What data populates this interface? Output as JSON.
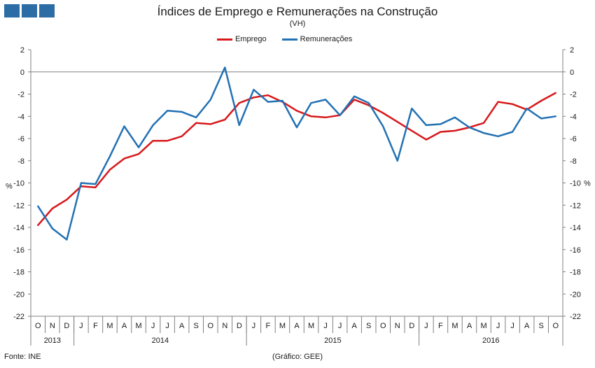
{
  "header": {
    "title": "Índices de Emprego e Remunerações na Construção",
    "subtitle": "(VH)"
  },
  "footer": {
    "source": "Fonte: INE",
    "credit": "(Gráfico: GEE)"
  },
  "colors": {
    "emprego": "#d7191c",
    "remuneracoes": "#2271b3",
    "logo": "#2d6da6",
    "axis": "#808080"
  },
  "chart_data": {
    "type": "line",
    "title": "Índices de Emprego e Remunerações na Construção",
    "subtitle": "(VH)",
    "ylabel_left": "%",
    "ylabel_right": "%",
    "ylim": [
      -22,
      2
    ],
    "yticks": [
      2,
      0,
      -2,
      -4,
      -6,
      -8,
      -10,
      -12,
      -14,
      -16,
      -18,
      -20,
      -22
    ],
    "grid": false,
    "legend_position": "top-center",
    "month_labels": [
      "O",
      "N",
      "D",
      "J",
      "F",
      "M",
      "A",
      "M",
      "J",
      "J",
      "A",
      "S",
      "O",
      "N",
      "D",
      "J",
      "F",
      "M",
      "A",
      "M",
      "J",
      "J",
      "A",
      "S",
      "O",
      "N",
      "D",
      "J",
      "F",
      "M",
      "A",
      "M",
      "J",
      "J",
      "A",
      "S",
      "O"
    ],
    "year_groups": [
      {
        "label": "2013",
        "count": 3
      },
      {
        "label": "2014",
        "count": 12
      },
      {
        "label": "2015",
        "count": 12
      },
      {
        "label": "2016",
        "count": 10
      }
    ],
    "series": [
      {
        "name": "Emprego",
        "color": "#d7191c",
        "values": [
          -13.8,
          -12.3,
          -11.5,
          -10.3,
          -10.4,
          -8.8,
          -7.8,
          -7.4,
          -6.2,
          -6.2,
          -5.8,
          -4.6,
          -4.7,
          -4.3,
          -2.8,
          -2.3,
          -2.1,
          -2.7,
          -3.5,
          -4.0,
          -4.1,
          -3.9,
          -2.5,
          -3.0,
          -3.7,
          -4.5,
          -5.3,
          -6.1,
          -5.4,
          -5.3,
          -5.0,
          -4.6,
          -2.7,
          -2.9,
          -3.4,
          -2.6,
          -1.9
        ]
      },
      {
        "name": "Remunerações",
        "color": "#2271b3",
        "values": [
          -12.1,
          -14.1,
          -15.1,
          -10.0,
          -10.1,
          -7.6,
          -4.9,
          -6.8,
          -4.8,
          -3.5,
          -3.6,
          -4.1,
          -2.5,
          0.4,
          -4.8,
          -1.6,
          -2.7,
          -2.6,
          -5.0,
          -2.8,
          -2.5,
          -3.9,
          -2.2,
          -2.8,
          -4.9,
          -8.0,
          -3.3,
          -4.8,
          -4.7,
          -4.1,
          -5.0,
          -5.5,
          -5.8,
          -5.4,
          -3.3,
          -4.2,
          -4.0
        ]
      }
    ]
  }
}
